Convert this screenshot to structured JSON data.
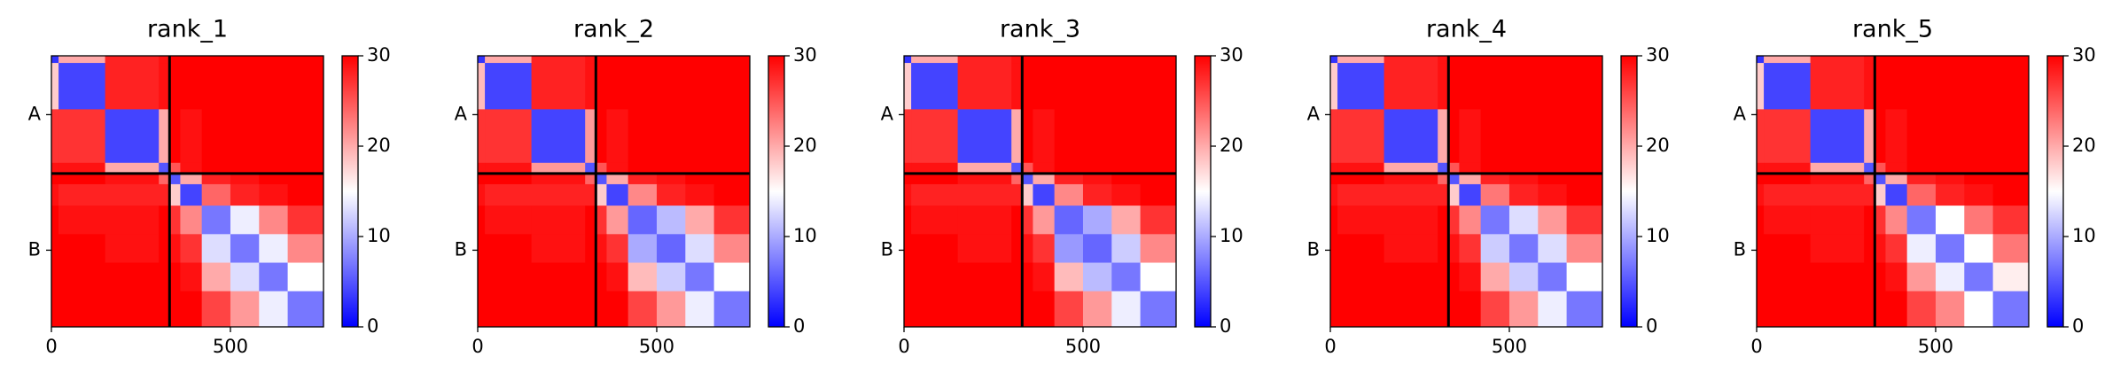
{
  "chart_data": [
    {
      "type": "heatmap",
      "title": "rank_1",
      "cmap": "bwr",
      "x_edges": [
        0,
        20,
        150,
        300,
        330,
        360,
        420,
        500,
        580,
        660,
        760
      ],
      "y_edges": [
        0,
        20,
        150,
        300,
        330,
        360,
        420,
        500,
        580,
        660,
        760
      ],
      "values": [
        [
          3,
          20,
          28,
          29,
          30,
          30,
          30,
          30,
          30,
          30
        ],
        [
          18,
          4,
          28,
          29,
          30,
          30,
          30,
          30,
          30,
          30
        ],
        [
          27,
          27,
          4,
          20,
          30,
          29,
          30,
          30,
          30,
          30
        ],
        [
          29,
          29,
          20,
          5,
          25,
          29,
          30,
          30,
          30,
          30
        ],
        [
          30,
          30,
          29,
          24,
          5,
          20,
          28,
          29,
          30,
          30
        ],
        [
          29,
          28,
          28,
          28,
          18,
          4,
          24,
          28,
          29,
          30
        ],
        [
          30,
          29,
          29,
          30,
          27,
          22,
          7,
          14,
          22,
          27
        ],
        [
          30,
          30,
          29,
          30,
          29,
          27,
          13,
          7,
          14,
          22
        ],
        [
          30,
          30,
          30,
          30,
          30,
          29,
          20,
          13,
          7,
          15
        ],
        [
          30,
          30,
          30,
          30,
          30,
          30,
          26,
          21,
          14,
          7
        ]
      ],
      "xlim": [
        0,
        760
      ],
      "xticks": [
        0,
        500
      ],
      "ylim": [
        760,
        0
      ],
      "yticks": [
        {
          "value": 165,
          "label": "A"
        },
        {
          "value": 545,
          "label": "B"
        }
      ],
      "chain_breaks": [
        330
      ],
      "clim": [
        0,
        30
      ],
      "cticks": [
        0,
        10,
        20,
        30
      ]
    },
    {
      "type": "heatmap",
      "title": "rank_2",
      "cmap": "bwr",
      "x_edges": [
        0,
        20,
        150,
        300,
        330,
        360,
        420,
        500,
        580,
        660,
        760
      ],
      "y_edges": [
        0,
        20,
        150,
        300,
        330,
        360,
        420,
        500,
        580,
        660,
        760
      ],
      "values": [
        [
          3,
          20,
          28,
          29,
          30,
          30,
          30,
          30,
          30,
          30
        ],
        [
          19,
          4,
          28,
          29,
          30,
          30,
          30,
          30,
          30,
          30
        ],
        [
          27,
          27,
          4,
          21,
          30,
          29,
          30,
          30,
          30,
          30
        ],
        [
          29,
          29,
          21,
          5,
          25,
          29,
          30,
          30,
          30,
          30
        ],
        [
          30,
          30,
          29,
          24,
          5,
          20,
          28,
          29,
          30,
          30
        ],
        [
          29,
          28,
          28,
          28,
          18,
          4,
          22,
          28,
          29,
          30
        ],
        [
          30,
          29,
          29,
          30,
          27,
          21,
          6,
          11,
          20,
          27
        ],
        [
          30,
          30,
          29,
          30,
          29,
          27,
          10,
          6,
          13,
          22
        ],
        [
          30,
          30,
          30,
          30,
          30,
          29,
          19,
          12,
          7,
          15
        ],
        [
          30,
          30,
          30,
          30,
          30,
          30,
          26,
          21,
          14,
          7
        ]
      ],
      "xlim": [
        0,
        760
      ],
      "xticks": [
        0,
        500
      ],
      "ylim": [
        760,
        0
      ],
      "yticks": [
        {
          "value": 165,
          "label": "A"
        },
        {
          "value": 545,
          "label": "B"
        }
      ],
      "chain_breaks": [
        330
      ],
      "clim": [
        0,
        30
      ],
      "cticks": [
        0,
        10,
        20,
        30
      ]
    },
    {
      "type": "heatmap",
      "title": "rank_3",
      "cmap": "bwr",
      "x_edges": [
        0,
        20,
        150,
        300,
        330,
        360,
        420,
        500,
        580,
        660,
        760
      ],
      "y_edges": [
        0,
        20,
        150,
        300,
        330,
        360,
        420,
        500,
        580,
        660,
        760
      ],
      "values": [
        [
          3,
          20,
          28,
          29,
          30,
          30,
          30,
          30,
          30,
          30
        ],
        [
          18,
          4,
          28,
          29,
          30,
          30,
          30,
          30,
          30,
          30
        ],
        [
          27,
          27,
          4,
          20,
          30,
          29,
          30,
          30,
          30,
          30
        ],
        [
          29,
          29,
          20,
          5,
          25,
          29,
          30,
          30,
          30,
          30
        ],
        [
          30,
          30,
          29,
          24,
          5,
          20,
          28,
          29,
          30,
          30
        ],
        [
          29,
          28,
          28,
          28,
          18,
          4,
          22,
          28,
          29,
          30
        ],
        [
          30,
          29,
          29,
          30,
          27,
          21,
          6,
          10,
          20,
          27
        ],
        [
          30,
          30,
          29,
          30,
          29,
          27,
          9,
          6,
          12,
          22
        ],
        [
          30,
          30,
          30,
          30,
          30,
          29,
          19,
          11,
          7,
          15
        ],
        [
          30,
          30,
          30,
          30,
          30,
          30,
          26,
          21,
          14,
          7
        ]
      ],
      "xlim": [
        0,
        760
      ],
      "xticks": [
        0,
        500
      ],
      "ylim": [
        760,
        0
      ],
      "yticks": [
        {
          "value": 165,
          "label": "A"
        },
        {
          "value": 545,
          "label": "B"
        }
      ],
      "chain_breaks": [
        330
      ],
      "clim": [
        0,
        30
      ],
      "cticks": [
        0,
        10,
        20,
        30
      ]
    },
    {
      "type": "heatmap",
      "title": "rank_4",
      "cmap": "bwr",
      "x_edges": [
        0,
        20,
        150,
        300,
        330,
        360,
        420,
        500,
        580,
        660,
        760
      ],
      "y_edges": [
        0,
        20,
        150,
        300,
        330,
        360,
        420,
        500,
        580,
        660,
        760
      ],
      "values": [
        [
          3,
          20,
          28,
          29,
          30,
          30,
          30,
          30,
          30,
          30
        ],
        [
          18,
          4,
          28,
          29,
          30,
          30,
          30,
          30,
          30,
          30
        ],
        [
          27,
          27,
          4,
          20,
          30,
          29,
          30,
          30,
          30,
          30
        ],
        [
          29,
          29,
          20,
          5,
          25,
          29,
          30,
          30,
          30,
          30
        ],
        [
          30,
          30,
          29,
          24,
          5,
          20,
          28,
          29,
          30,
          30
        ],
        [
          29,
          28,
          28,
          28,
          18,
          4,
          23,
          28,
          29,
          30
        ],
        [
          30,
          29,
          29,
          30,
          27,
          22,
          7,
          13,
          21,
          27
        ],
        [
          30,
          30,
          29,
          30,
          29,
          27,
          12,
          7,
          13,
          22
        ],
        [
          30,
          30,
          30,
          30,
          30,
          29,
          20,
          12,
          7,
          15
        ],
        [
          30,
          30,
          30,
          30,
          30,
          30,
          26,
          21,
          14,
          7
        ]
      ],
      "xlim": [
        0,
        760
      ],
      "xticks": [
        0,
        500
      ],
      "ylim": [
        760,
        0
      ],
      "yticks": [
        {
          "value": 165,
          "label": "A"
        },
        {
          "value": 545,
          "label": "B"
        }
      ],
      "chain_breaks": [
        330
      ],
      "clim": [
        0,
        30
      ],
      "cticks": [
        0,
        10,
        20,
        30
      ]
    },
    {
      "type": "heatmap",
      "title": "rank_5",
      "cmap": "bwr",
      "x_edges": [
        0,
        20,
        150,
        300,
        330,
        360,
        420,
        500,
        580,
        660,
        760
      ],
      "y_edges": [
        0,
        20,
        150,
        300,
        330,
        360,
        420,
        500,
        580,
        660,
        760
      ],
      "values": [
        [
          3,
          20,
          28,
          29,
          30,
          30,
          30,
          30,
          30,
          30
        ],
        [
          18,
          4,
          28,
          29,
          30,
          30,
          30,
          30,
          30,
          30
        ],
        [
          27,
          27,
          4,
          20,
          30,
          29,
          30,
          30,
          30,
          30
        ],
        [
          29,
          29,
          20,
          5,
          25,
          29,
          30,
          30,
          30,
          30
        ],
        [
          30,
          30,
          29,
          24,
          5,
          20,
          28,
          29,
          30,
          30
        ],
        [
          29,
          28,
          28,
          28,
          18,
          4,
          24,
          28,
          29,
          30
        ],
        [
          30,
          29,
          29,
          30,
          27,
          22,
          7,
          15,
          23,
          27
        ],
        [
          30,
          30,
          29,
          30,
          29,
          27,
          14,
          7,
          15,
          23
        ],
        [
          30,
          30,
          30,
          30,
          30,
          29,
          21,
          14,
          7,
          16
        ],
        [
          30,
          30,
          30,
          30,
          30,
          30,
          26,
          22,
          15,
          7
        ]
      ],
      "xlim": [
        0,
        760
      ],
      "xticks": [
        0,
        500
      ],
      "ylim": [
        760,
        0
      ],
      "yticks": [
        {
          "value": 165,
          "label": "A"
        },
        {
          "value": 545,
          "label": "B"
        }
      ],
      "chain_breaks": [
        330
      ],
      "clim": [
        0,
        30
      ],
      "cticks": [
        0,
        10,
        20,
        30
      ]
    }
  ]
}
